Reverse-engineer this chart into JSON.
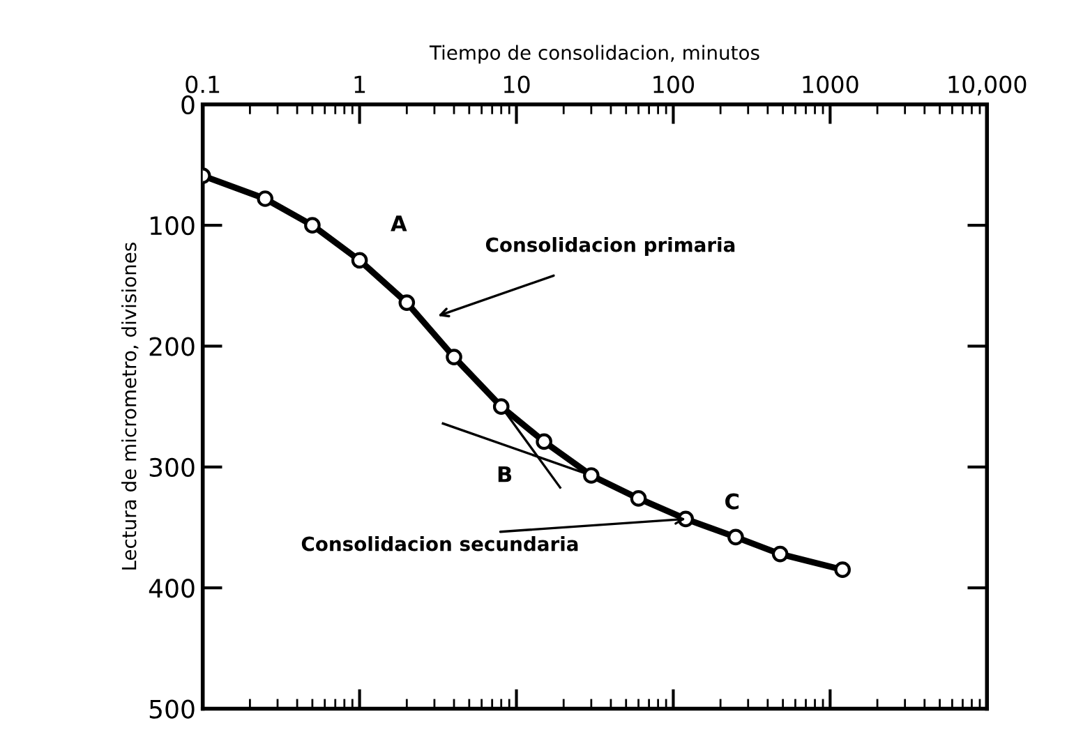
{
  "chart_data": {
    "type": "line",
    "xlabel": "Tiempo de consolidacion, minutos",
    "ylabel": "Lectura de micrometro, divisiones",
    "log": "x",
    "xlim": [
      0.1,
      10000
    ],
    "xticks": [
      0.1,
      1,
      10,
      100,
      1000,
      {
        "value": 10000,
        "label": "10,000"
      }
    ],
    "ylim": [
      500,
      0
    ],
    "yticks": [
      0,
      100,
      200,
      300,
      400,
      500
    ],
    "grid": false,
    "legend": false,
    "series": [
      {
        "color": "#000000",
        "marker": "circle",
        "line_style": "solid",
        "x": [
          0.1,
          0.25,
          0.5,
          1,
          2,
          4,
          8,
          15,
          30,
          60,
          120,
          250,
          480,
          1200
        ],
        "values": [
          59,
          78,
          100,
          129,
          164,
          209,
          250,
          279,
          307,
          326,
          343,
          358,
          372,
          385
        ]
      },
      {
        "color": "#000000",
        "marker": "none",
        "line_style": "solid",
        "x": [
          3.4,
          30
        ],
        "values": [
          264,
          307
        ]
      },
      {
        "color": "#000000",
        "marker": "none",
        "line_style": "solid",
        "x": [
          8,
          19
        ],
        "values": [
          250,
          317
        ]
      }
    ],
    "annotations": [
      "A",
      "B",
      "C",
      "Consolidacion primaria",
      {
        "text": "Consolidacion secundaria",
        "x": 120,
        "y": 343
      }
    ]
  }
}
